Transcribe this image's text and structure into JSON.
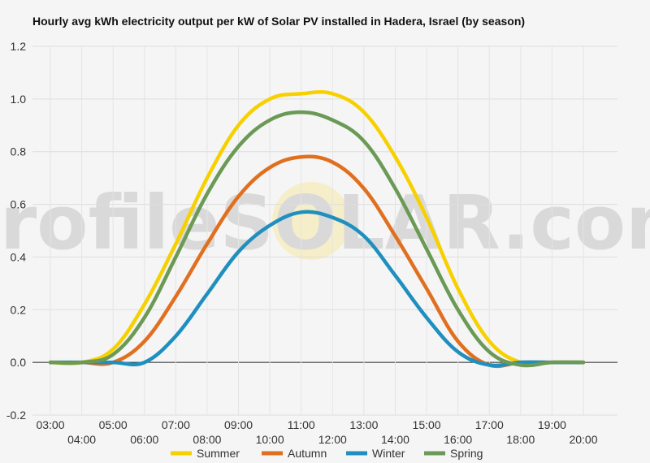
{
  "chart_data": {
    "type": "line",
    "title": "Hourly avg kWh electricity output per kW of Solar PV installed in Hadera, Israel (by season)",
    "xlabel": "",
    "ylabel": "",
    "ylim": [
      -0.2,
      1.2
    ],
    "yticks": [
      "-0.2",
      "0.0",
      "0.2",
      "0.4",
      "0.6",
      "0.8",
      "1.0",
      "1.2"
    ],
    "x": [
      "03:00",
      "04:00",
      "05:00",
      "06:00",
      "07:00",
      "08:00",
      "09:00",
      "10:00",
      "11:00",
      "12:00",
      "13:00",
      "14:00",
      "15:00",
      "16:00",
      "17:00",
      "18:00",
      "19:00",
      "20:00"
    ],
    "grid": true,
    "legend_position": "bottom",
    "watermark": "profileSOLAR.com",
    "series": [
      {
        "name": "Summer",
        "color": "#f7d000",
        "values": [
          0,
          0,
          0.05,
          0.22,
          0.45,
          0.7,
          0.9,
          1.0,
          1.02,
          1.02,
          0.95,
          0.78,
          0.55,
          0.28,
          0.08,
          0.0,
          0,
          0
        ]
      },
      {
        "name": "Autumn",
        "color": "#e07020",
        "values": [
          0,
          0,
          0.0,
          0.08,
          0.25,
          0.45,
          0.63,
          0.74,
          0.78,
          0.76,
          0.66,
          0.48,
          0.28,
          0.08,
          -0.01,
          0,
          0,
          0
        ]
      },
      {
        "name": "Winter",
        "color": "#1f8fbf",
        "values": [
          0,
          0,
          0,
          0.0,
          0.1,
          0.26,
          0.42,
          0.52,
          0.57,
          0.55,
          0.48,
          0.33,
          0.17,
          0.04,
          -0.01,
          0,
          0,
          0
        ]
      },
      {
        "name": "Spring",
        "color": "#6a9a55",
        "values": [
          0,
          0,
          0.03,
          0.17,
          0.4,
          0.64,
          0.82,
          0.92,
          0.95,
          0.92,
          0.84,
          0.66,
          0.43,
          0.2,
          0.04,
          -0.01,
          0,
          0
        ]
      }
    ]
  }
}
